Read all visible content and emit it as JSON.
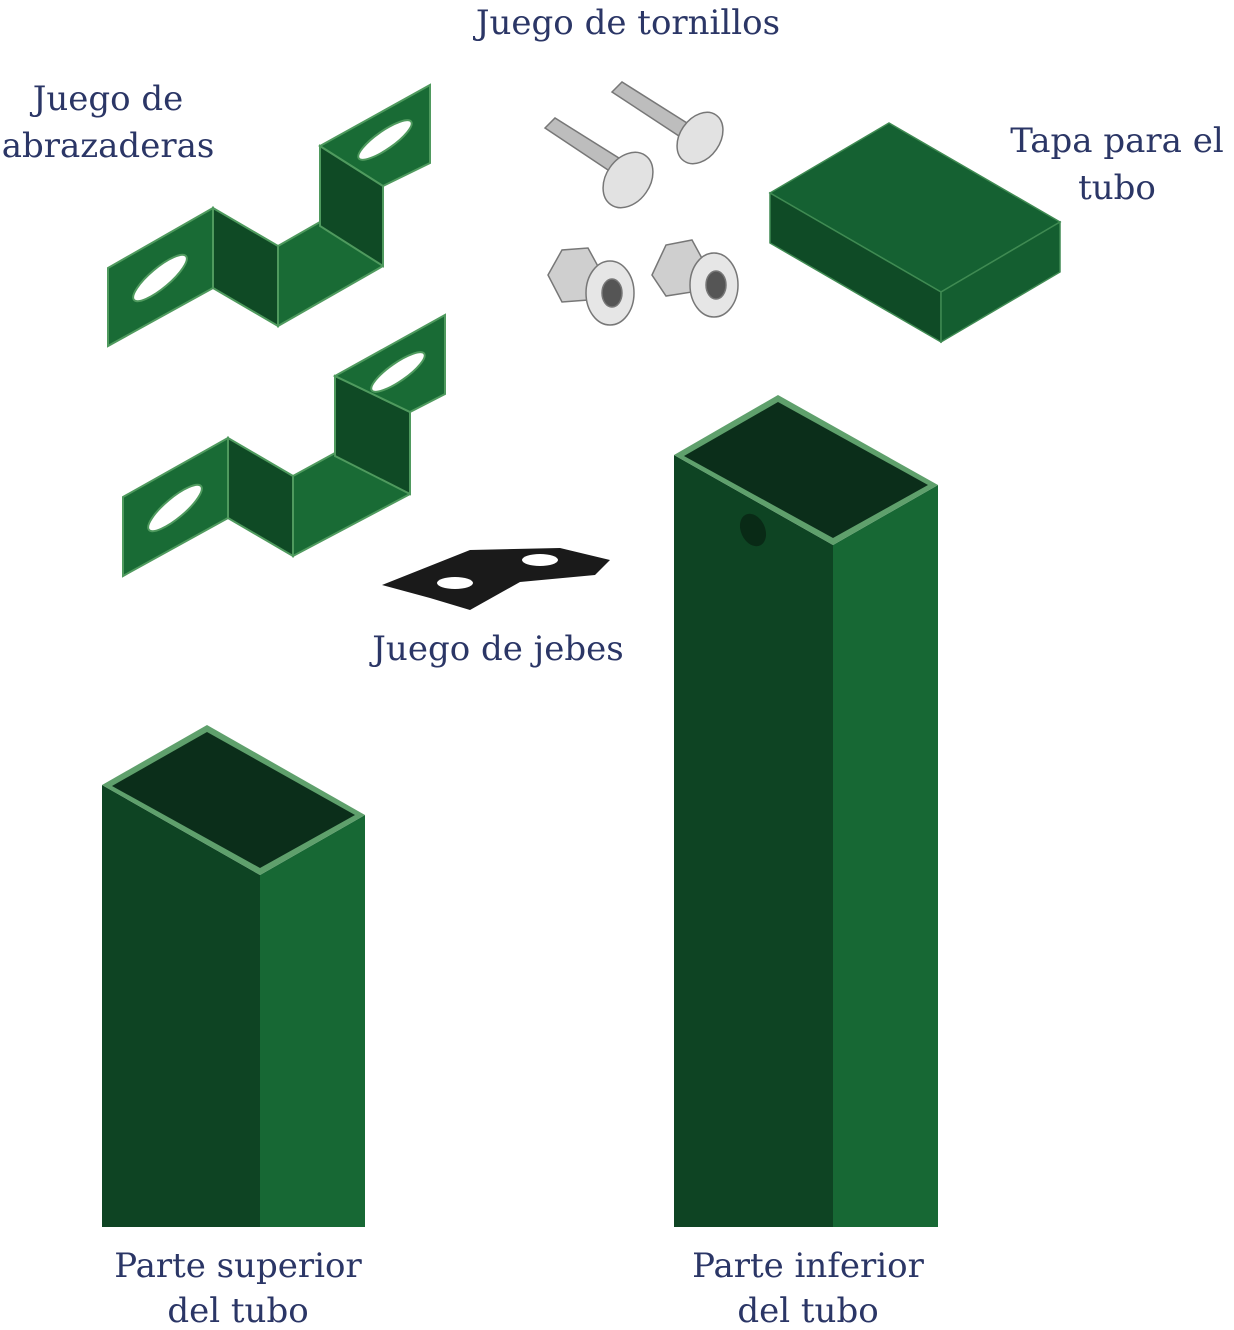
{
  "labels": {
    "screws": [
      "Juego de tornillos"
    ],
    "brackets": [
      "Juego de",
      "abrazaderas"
    ],
    "cap": [
      "Tapa para el",
      "tubo"
    ],
    "rubbers": [
      "Juego de jebes"
    ],
    "top_tube": [
      "Parte superior",
      "del tubo"
    ],
    "bottom_tube": [
      "Parte inferior",
      "del tubo"
    ]
  }
}
